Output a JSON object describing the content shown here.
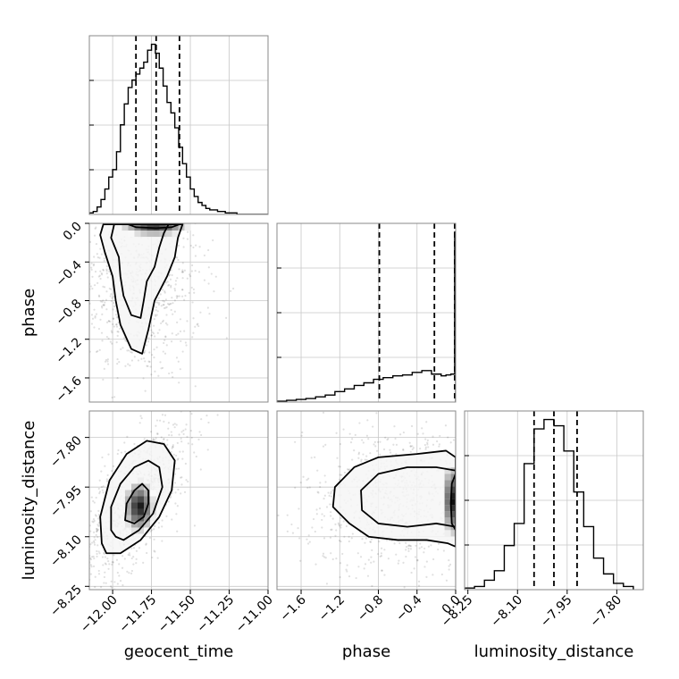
{
  "chart_data": {
    "type": "corner",
    "parameters": [
      {
        "name": "geocent_time",
        "range": [
          -12.15,
          -11.0
        ],
        "ticks": [
          -12.0,
          -11.75,
          -11.5,
          -11.25,
          -11.0
        ],
        "tick_labels": [
          "−12.00",
          "−11.75",
          "−11.50",
          "−11.25",
          "−11.00"
        ],
        "quantiles": [
          -11.85,
          -11.72,
          -11.57
        ],
        "histogram": {
          "bin_edges": [
            -12.15,
            -12.125,
            -12.1,
            -12.075,
            -12.05,
            -12.025,
            -12.0,
            -11.975,
            -11.95,
            -11.925,
            -11.9,
            -11.875,
            -11.85,
            -11.825,
            -11.8,
            -11.775,
            -11.75,
            -11.725,
            -11.7,
            -11.675,
            -11.65,
            -11.625,
            -11.6,
            -11.575,
            -11.55,
            -11.525,
            -11.5,
            -11.475,
            -11.45,
            -11.425,
            -11.4,
            -11.375,
            -11.35,
            -11.325,
            -11.3,
            -11.275,
            -11.25,
            -11.225,
            -11.2,
            -11.175,
            -11.15,
            -11.125,
            -11.1,
            -11.075,
            -11.05,
            -11.025,
            -11.0
          ],
          "counts": [
            1,
            2,
            5,
            10,
            17,
            25,
            30,
            42,
            60,
            74,
            85,
            90,
            94,
            98,
            102,
            110,
            114,
            108,
            98,
            86,
            75,
            68,
            58,
            45,
            34,
            25,
            17,
            12,
            8,
            6,
            4,
            3,
            3,
            2,
            2,
            1,
            1,
            1,
            0,
            0,
            0,
            0,
            0,
            0,
            0,
            0
          ]
        }
      },
      {
        "name": "phase",
        "range": [
          -1.85,
          0.0
        ],
        "ticks": [
          -1.6,
          -1.2,
          -0.8,
          -0.4,
          0.0
        ],
        "tick_labels": [
          "−1.6",
          "−1.2",
          "−0.8",
          "−0.4",
          "0.0"
        ],
        "quantiles": [
          -0.79,
          -0.22,
          -0.01
        ],
        "histogram": {
          "bin_edges": [
            -1.85,
            -1.75,
            -1.65,
            -1.55,
            -1.45,
            -1.35,
            -1.25,
            -1.15,
            -1.05,
            -0.95,
            -0.85,
            -0.75,
            -0.65,
            -0.55,
            -0.45,
            -0.35,
            -0.25,
            -0.15,
            -0.1,
            -0.05,
            -0.01,
            0.0
          ],
          "counts": [
            1,
            2,
            3,
            4,
            6,
            8,
            12,
            15,
            19,
            22,
            26,
            28,
            30,
            31,
            34,
            36,
            32,
            30,
            31,
            32,
            195
          ]
        }
      },
      {
        "name": "luminosity_distance",
        "range": [
          -8.26,
          -7.72
        ],
        "ticks": [
          -8.25,
          -8.1,
          -7.95,
          -7.8
        ],
        "tick_labels": [
          "−8.25",
          "−8.10",
          "−7.95",
          "−7.80"
        ],
        "quantiles": [
          -8.05,
          -7.99,
          -7.92
        ],
        "histogram": {
          "bin_edges": [
            -8.26,
            -8.23,
            -8.2,
            -8.17,
            -8.14,
            -8.11,
            -8.08,
            -8.05,
            -8.02,
            -7.99,
            -7.96,
            -7.93,
            -7.9,
            -7.87,
            -7.84,
            -7.81,
            -7.78,
            -7.75
          ],
          "counts": [
            1,
            2,
            6,
            12,
            28,
            42,
            80,
            102,
            108,
            104,
            88,
            62,
            40,
            20,
            10,
            4,
            2
          ]
        }
      }
    ],
    "pairs": [
      {
        "x": "geocent_time",
        "y": "phase",
        "peak": [
          -11.73,
          -0.01
        ],
        "contours": [
          [
            [
              -12.06,
              -0.01
            ],
            [
              -12.08,
              -0.12
            ],
            [
              -12.05,
              -0.3
            ],
            [
              -12.0,
              -0.55
            ],
            [
              -11.98,
              -0.8
            ],
            [
              -11.95,
              -1.05
            ],
            [
              -11.88,
              -1.3
            ],
            [
              -11.81,
              -1.35
            ],
            [
              -11.77,
              -1.1
            ],
            [
              -11.73,
              -0.8
            ],
            [
              -11.65,
              -0.55
            ],
            [
              -11.6,
              -0.35
            ],
            [
              -11.58,
              -0.15
            ],
            [
              -11.55,
              -0.01
            ]
          ],
          [
            [
              -11.99,
              -0.01
            ],
            [
              -12.01,
              -0.15
            ],
            [
              -11.96,
              -0.35
            ],
            [
              -11.95,
              -0.55
            ],
            [
              -11.93,
              -0.75
            ],
            [
              -11.88,
              -0.95
            ],
            [
              -11.82,
              -0.98
            ],
            [
              -11.8,
              -0.8
            ],
            [
              -11.78,
              -0.6
            ],
            [
              -11.73,
              -0.45
            ],
            [
              -11.7,
              -0.25
            ],
            [
              -11.67,
              -0.1
            ],
            [
              -11.64,
              -0.01
            ]
          ],
          [
            [
              -11.9,
              -0.01
            ],
            [
              -11.85,
              -0.04
            ],
            [
              -11.72,
              -0.05
            ],
            [
              -11.62,
              -0.04
            ],
            [
              -11.57,
              -0.01
            ]
          ]
        ]
      },
      {
        "x": "geocent_time",
        "y": "luminosity_distance",
        "peak": [
          -11.83,
          -8.01
        ],
        "contours": [
          [
            [
              -12.07,
              -8.12
            ],
            [
              -12.08,
              -8.04
            ],
            [
              -12.02,
              -7.93
            ],
            [
              -11.91,
              -7.85
            ],
            [
              -11.78,
              -7.81
            ],
            [
              -11.67,
              -7.82
            ],
            [
              -11.6,
              -7.87
            ],
            [
              -11.62,
              -7.96
            ],
            [
              -11.7,
              -8.04
            ],
            [
              -11.82,
              -8.11
            ],
            [
              -11.95,
              -8.15
            ],
            [
              -12.04,
              -8.15
            ]
          ],
          [
            [
              -12.01,
              -8.08
            ],
            [
              -12.01,
              -8.01
            ],
            [
              -11.95,
              -7.94
            ],
            [
              -11.86,
              -7.89
            ],
            [
              -11.77,
              -7.87
            ],
            [
              -11.7,
              -7.89
            ],
            [
              -11.68,
              -7.95
            ],
            [
              -11.74,
              -8.03
            ],
            [
              -11.83,
              -8.08
            ],
            [
              -11.93,
              -8.11
            ],
            [
              -11.98,
              -8.1
            ]
          ],
          [
            [
              -11.92,
              -8.05
            ],
            [
              -11.91,
              -8.0
            ],
            [
              -11.86,
              -7.96
            ],
            [
              -11.81,
              -7.94
            ],
            [
              -11.77,
              -7.96
            ],
            [
              -11.77,
              -8.0
            ],
            [
              -11.8,
              -8.04
            ],
            [
              -11.86,
              -8.06
            ]
          ]
        ]
      },
      {
        "x": "phase",
        "y": "luminosity_distance",
        "peak": [
          -0.01,
          -7.99
        ],
        "contours": [
          [
            [
              0.0,
              -7.86
            ],
            [
              -0.1,
              -7.84
            ],
            [
              -0.4,
              -7.85
            ],
            [
              -0.8,
              -7.86
            ],
            [
              -1.05,
              -7.89
            ],
            [
              -1.25,
              -7.95
            ],
            [
              -1.27,
              -8.01
            ],
            [
              -1.1,
              -8.06
            ],
            [
              -0.9,
              -8.1
            ],
            [
              -0.6,
              -8.11
            ],
            [
              -0.3,
              -8.11
            ],
            [
              -0.08,
              -8.12
            ],
            [
              0.0,
              -8.13
            ]
          ],
          [
            [
              0.0,
              -7.9
            ],
            [
              -0.2,
              -7.89
            ],
            [
              -0.5,
              -7.89
            ],
            [
              -0.8,
              -7.91
            ],
            [
              -0.98,
              -7.96
            ],
            [
              -0.97,
              -8.02
            ],
            [
              -0.8,
              -8.06
            ],
            [
              -0.5,
              -8.07
            ],
            [
              -0.2,
              -8.06
            ],
            [
              0.0,
              -8.07
            ]
          ],
          [
            [
              0.0,
              -7.91
            ],
            [
              -0.04,
              -7.94
            ],
            [
              -0.05,
              -8.0
            ],
            [
              -0.04,
              -8.06
            ],
            [
              0.0,
              -8.08
            ]
          ]
        ]
      }
    ]
  }
}
